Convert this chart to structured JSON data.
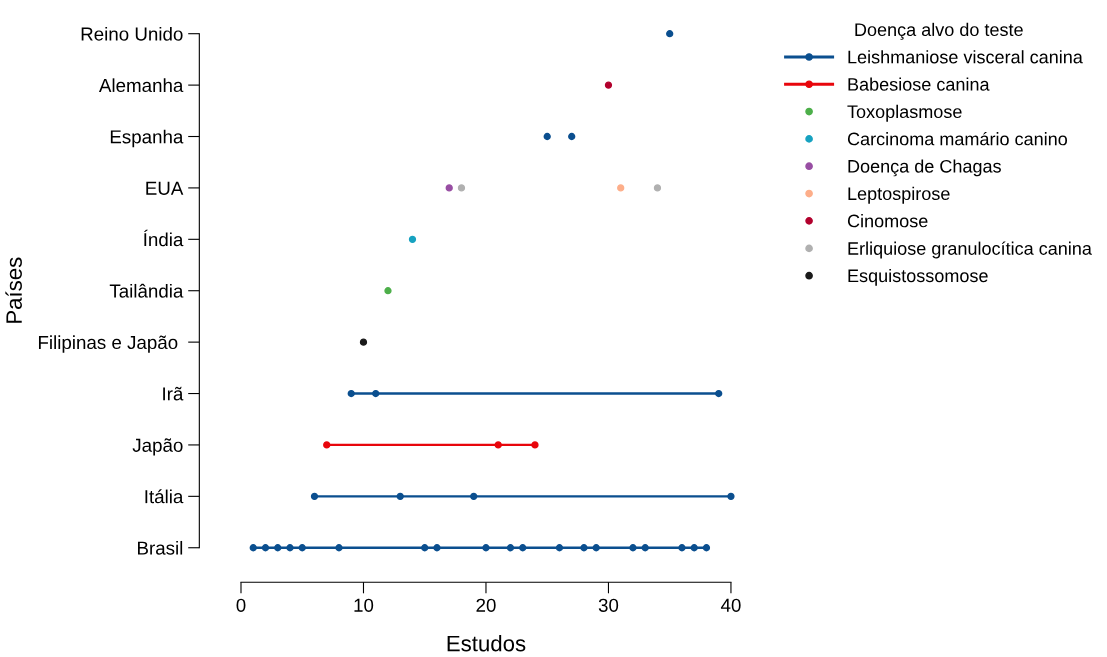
{
  "chart_data": {
    "type": "scatter",
    "orientation": "horizontal",
    "xlabel": "Estudos",
    "ylabel": "Países",
    "legend_title": "Doença alvo do teste",
    "legend": "top right",
    "marker": "circle",
    "grid": false,
    "categories": [
      "Reino Unido",
      "Alemanha",
      "Espanha",
      "EUA",
      "Índia",
      "Tailândia",
      "Filipinas e Japão ",
      "Irã",
      "Japão",
      "Itália",
      "Brasil"
    ],
    "xlim": [
      0,
      40
    ],
    "xticks": [
      0,
      10,
      20,
      30,
      40
    ],
    "series": [
      {
        "name": "Leishmaniose visceral canina",
        "type": "bar",
        "color": "#0b4f8f",
        "base": [
          null,
          null,
          null,
          null,
          null,
          null,
          null,
          9,
          null,
          6,
          1
        ],
        "values": [
          null,
          null,
          null,
          null,
          null,
          null,
          null,
          30,
          null,
          34,
          37
        ]
      },
      {
        "name": "Babesiose canina",
        "type": "bar",
        "color": "#e8060c",
        "base": [
          null,
          null,
          null,
          null,
          null,
          null,
          null,
          null,
          7,
          null,
          null
        ],
        "values": [
          null,
          null,
          null,
          null,
          null,
          null,
          null,
          null,
          17,
          null,
          null
        ]
      },
      {
        "name": "Toxoplasmose",
        "color": "#4daf4a",
        "values": [
          null,
          null,
          null,
          null,
          null,
          12,
          null,
          null,
          null,
          null,
          null
        ]
      },
      {
        "name": "Carcinoma mamário canino",
        "color": "#17a2c0",
        "values": [
          null,
          null,
          null,
          null,
          14,
          null,
          null,
          null,
          null,
          null,
          null
        ]
      },
      {
        "name": "Doença de Chagas",
        "color": "#984ea3",
        "values": [
          null,
          null,
          null,
          17,
          null,
          null,
          null,
          null,
          null,
          null,
          null
        ]
      },
      {
        "name": "Leptospirose",
        "color": "#fdae8a",
        "values": [
          null,
          null,
          null,
          31,
          null,
          null,
          null,
          null,
          null,
          null,
          null
        ]
      },
      {
        "name": "Cinomose",
        "color": "#b2002d",
        "values": [
          null,
          30,
          null,
          null,
          null,
          null,
          null,
          null,
          null,
          null,
          null
        ]
      },
      {
        "name": "Erliquiose granulocítica canina",
        "color": "#b0b0b0",
        "values": [
          null,
          null,
          null,
          18,
          null,
          null,
          null,
          null,
          null,
          null,
          null
        ]
      },
      {
        "name": "Esquistossomose",
        "color": "#1a1a1a",
        "values": [
          null,
          null,
          null,
          null,
          null,
          null,
          10,
          null,
          null,
          null,
          null
        ]
      },
      {
        "color": "#b0b0b0",
        "values": [
          null,
          null,
          null,
          34,
          null,
          null,
          null,
          null,
          null,
          null,
          null
        ]
      },
      {
        "color": "#0b4f8f",
        "values": [
          35,
          null,
          25,
          null,
          null,
          null,
          null,
          9,
          null,
          6,
          1
        ]
      },
      {
        "color": "#0b4f8f",
        "values": [
          null,
          null,
          27,
          null,
          null,
          null,
          null,
          11,
          null,
          13,
          2
        ]
      },
      {
        "color": "#0b4f8f",
        "values": [
          null,
          null,
          null,
          null,
          null,
          null,
          null,
          39,
          null,
          19,
          3
        ]
      },
      {
        "color": "#0b4f8f",
        "values": [
          null,
          null,
          null,
          null,
          null,
          null,
          null,
          null,
          null,
          40,
          4
        ]
      },
      {
        "color": "#0b4f8f",
        "values": [
          null,
          null,
          null,
          null,
          null,
          null,
          null,
          null,
          null,
          null,
          5
        ]
      },
      {
        "color": "#0b4f8f",
        "values": [
          null,
          null,
          null,
          null,
          null,
          null,
          null,
          null,
          null,
          null,
          8
        ]
      },
      {
        "color": "#0b4f8f",
        "values": [
          null,
          null,
          null,
          null,
          null,
          null,
          null,
          null,
          null,
          null,
          15
        ]
      },
      {
        "color": "#0b4f8f",
        "values": [
          null,
          null,
          null,
          null,
          null,
          null,
          null,
          null,
          null,
          null,
          16
        ]
      },
      {
        "color": "#0b4f8f",
        "values": [
          null,
          null,
          null,
          null,
          null,
          null,
          null,
          null,
          null,
          null,
          20
        ]
      },
      {
        "color": "#0b4f8f",
        "values": [
          null,
          null,
          null,
          null,
          null,
          null,
          null,
          null,
          null,
          null,
          22
        ]
      },
      {
        "color": "#0b4f8f",
        "values": [
          null,
          null,
          null,
          null,
          null,
          null,
          null,
          null,
          null,
          null,
          23
        ]
      },
      {
        "color": "#0b4f8f",
        "values": [
          null,
          null,
          null,
          null,
          null,
          null,
          null,
          null,
          null,
          null,
          26
        ]
      },
      {
        "color": "#0b4f8f",
        "values": [
          null,
          null,
          null,
          null,
          null,
          null,
          null,
          null,
          null,
          null,
          28
        ]
      },
      {
        "color": "#0b4f8f",
        "values": [
          null,
          null,
          null,
          null,
          null,
          null,
          null,
          null,
          null,
          null,
          29
        ]
      },
      {
        "color": "#0b4f8f",
        "values": [
          null,
          null,
          null,
          null,
          null,
          null,
          null,
          null,
          null,
          null,
          32
        ]
      },
      {
        "color": "#0b4f8f",
        "values": [
          null,
          null,
          null,
          null,
          null,
          null,
          null,
          null,
          null,
          null,
          33
        ]
      },
      {
        "color": "#0b4f8f",
        "values": [
          null,
          null,
          null,
          null,
          null,
          null,
          null,
          null,
          null,
          null,
          36
        ]
      },
      {
        "color": "#0b4f8f",
        "values": [
          null,
          null,
          null,
          null,
          null,
          null,
          null,
          null,
          null,
          null,
          37
        ]
      },
      {
        "color": "#0b4f8f",
        "values": [
          null,
          null,
          null,
          null,
          null,
          null,
          null,
          null,
          null,
          null,
          38
        ]
      },
      {
        "color": "#e8060c",
        "values": [
          null,
          null,
          null,
          null,
          null,
          null,
          null,
          null,
          7,
          null,
          null
        ]
      },
      {
        "color": "#e8060c",
        "values": [
          null,
          null,
          null,
          null,
          null,
          null,
          null,
          null,
          21,
          null,
          null
        ]
      },
      {
        "color": "#e8060c",
        "values": [
          null,
          null,
          null,
          null,
          null,
          null,
          null,
          null,
          24,
          null,
          null
        ]
      }
    ]
  }
}
